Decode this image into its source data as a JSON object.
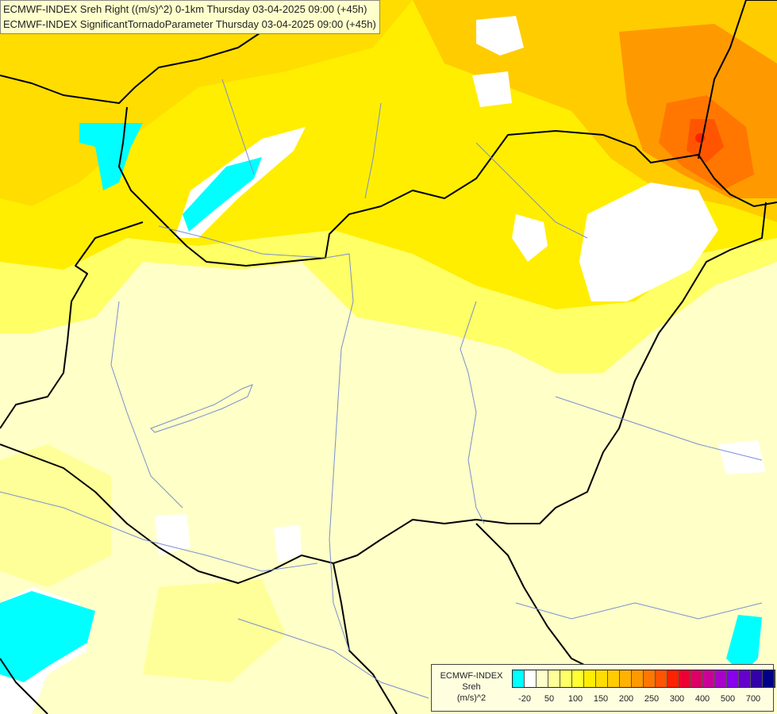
{
  "title_lines": [
    "ECMWF-INDEX Sreh Right ((m/s)^2) 0-1km Thursday 03-04-2025 09:00 (+45h)",
    "ECMWF-INDEX SignificantTornadoParameter Thursday 03-04-2025 09:00 (+45h)"
  ],
  "legend": {
    "title_lines": [
      "ECMWF-INDEX",
      "Sreh",
      "(m/s)^2"
    ],
    "colors": [
      "#00ffff",
      "#ffffff",
      "#ffffcc",
      "#ffff99",
      "#ffff66",
      "#ffff33",
      "#ffee00",
      "#ffdd00",
      "#ffcc00",
      "#ffb300",
      "#ff9900",
      "#ff7700",
      "#ff5500",
      "#ff2200",
      "#ee0033",
      "#dd0066",
      "#cc0099",
      "#aa00cc",
      "#8800ee",
      "#6600cc",
      "#3300aa",
      "#000088"
    ],
    "tick_labels": [
      "-20",
      "50",
      "100",
      "150",
      "200",
      "250",
      "300",
      "400",
      "500",
      "700"
    ]
  },
  "colors": {
    "background": "#ffffc8",
    "border": "#000000",
    "rivers": "#7a8fd0"
  }
}
